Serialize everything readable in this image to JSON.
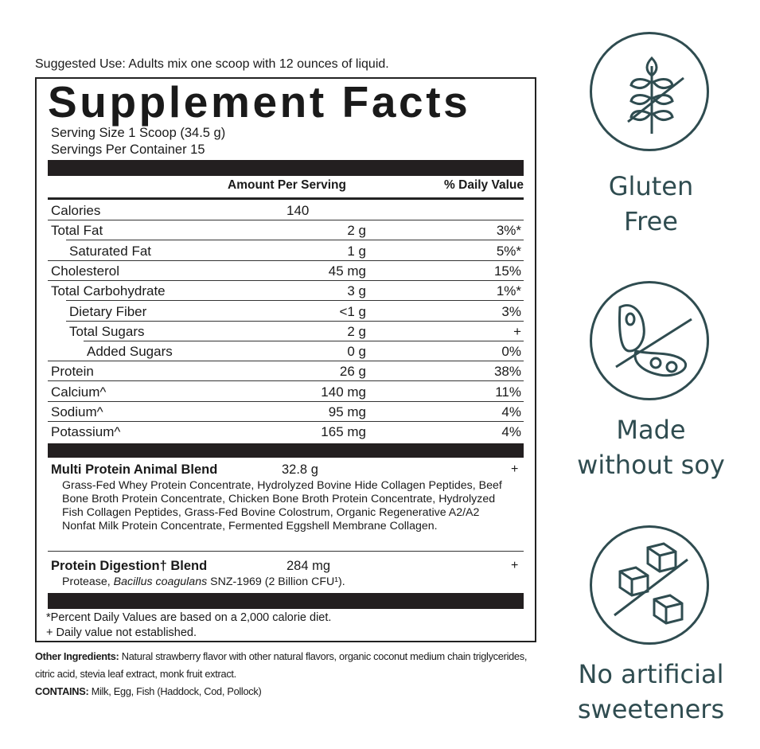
{
  "suggested_use": "Suggested Use: Adults mix one scoop with 12 ounces of liquid.",
  "title": "Supplement Facts",
  "serving_size": "Serving Size 1 Scoop (34.5 g)",
  "servings_per_container": "Servings Per Container 15",
  "header": {
    "amount": "Amount Per Serving",
    "dv": "% Daily Value"
  },
  "rows": [
    {
      "name": "Calories",
      "amount": "140",
      "dv": "",
      "indent": 0
    },
    {
      "name": "Total Fat",
      "amount": "2 g",
      "dv": "3%*",
      "indent": 0
    },
    {
      "name": "Saturated Fat",
      "amount": "1 g",
      "dv": "5%*",
      "indent": 1
    },
    {
      "name": "Cholesterol",
      "amount": "45 mg",
      "dv": "15%",
      "indent": 0
    },
    {
      "name": "Total Carbohydrate",
      "amount": "3 g",
      "dv": "1%*",
      "indent": 0
    },
    {
      "name": "Dietary Fiber",
      "amount": "<1 g",
      "dv": "3%",
      "indent": 1
    },
    {
      "name": "Total Sugars",
      "amount": "2 g",
      "dv": "+",
      "indent": 1
    },
    {
      "name": "Added Sugars",
      "amount": "0 g",
      "dv": "0%",
      "indent": 2
    },
    {
      "name": "Protein",
      "amount": "26 g",
      "dv": "38%",
      "indent": 0
    },
    {
      "name": "Calcium^",
      "amount": "140 mg",
      "dv": "11%",
      "indent": 0
    },
    {
      "name": "Sodium^",
      "amount": "95 mg",
      "dv": "4%",
      "indent": 0
    },
    {
      "name": "Potassium^",
      "amount": "165 mg",
      "dv": "4%",
      "indent": 0
    }
  ],
  "blends": [
    {
      "name": "Multi Protein Animal Blend",
      "amount": "32.8 g",
      "dv": "+",
      "ingredients": "Grass-Fed Whey Protein Concentrate, Hydrolyzed Bovine Hide Collagen Peptides, Beef Bone Broth Protein Concentrate, Chicken Bone Broth Protein Concentrate, Hydrolyzed Fish Collagen Peptides, Grass-Fed Bovine Colostrum, Organic Regenerative A2/A2 Nonfat Milk Protein Concentrate, Fermented Eggshell Membrane Collagen."
    },
    {
      "name": "Protein Digestion† Blend",
      "amount": "284 mg",
      "dv": "+",
      "ingredients_pre": "Protease, ",
      "ingredients_italic": "Bacillus coagulans",
      "ingredients_post": " SNZ-1969 (2 Billion CFU¹)."
    }
  ],
  "footnotes": [
    "*Percent Daily Values are based on a 2,000 calorie diet.",
    "+ Daily value not established."
  ],
  "other_ingredients": {
    "label": "Other Ingredients:",
    "text": " Natural strawberry flavor with other natural flavors, organic coconut medium chain triglycerides, citric acid, stevia leaf extract, monk fruit extract."
  },
  "contains": {
    "label": "CONTAINS:",
    "text": " Milk, Egg, Fish (Haddock, Cod, Pollock)"
  },
  "badges": [
    {
      "icon": "wheat-crossed-icon",
      "label1": "Gluten",
      "label2": "Free"
    },
    {
      "icon": "soybean-crossed-icon",
      "label1": "Made",
      "label2": "without soy"
    },
    {
      "icon": "sugar-cubes-crossed-icon",
      "label1": "No artificial",
      "label2": "sweeteners"
    }
  ],
  "icon_color": "#2f4c50"
}
